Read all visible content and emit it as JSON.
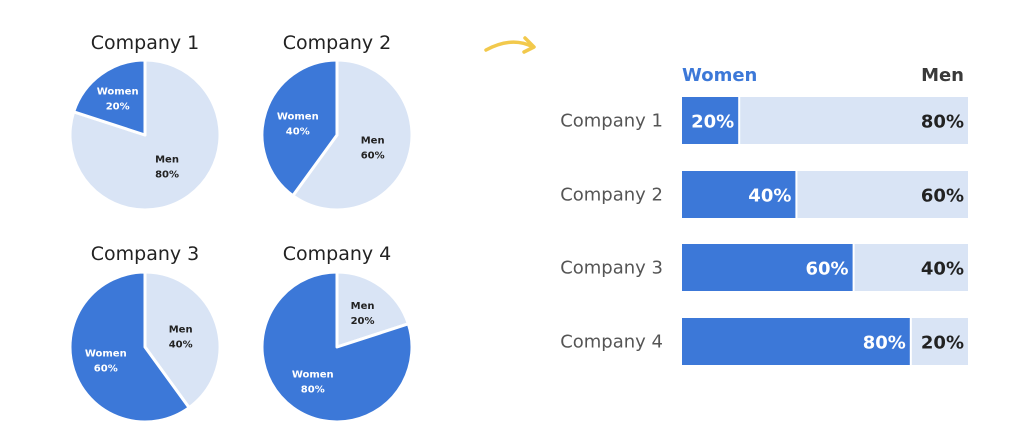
{
  "colors": {
    "women": "#3c78d8",
    "men": "#d9e4f5",
    "women_text_on_pie": "#ffffff",
    "men_text_on_pie": "#222222",
    "men_legend": "#3a3a3a",
    "arrow": "#f2c94c"
  },
  "icons": {
    "arrow": "curved-arrow-right-icon"
  },
  "chart_data": [
    {
      "type": "pie",
      "charts": [
        {
          "title": "Company 1",
          "slices": [
            {
              "label": "Women",
              "value": 20,
              "value_label": "20%"
            },
            {
              "label": "Men",
              "value": 80,
              "value_label": "80%"
            }
          ]
        },
        {
          "title": "Company 2",
          "slices": [
            {
              "label": "Women",
              "value": 40,
              "value_label": "40%"
            },
            {
              "label": "Men",
              "value": 60,
              "value_label": "60%"
            }
          ]
        },
        {
          "title": "Company 3",
          "slices": [
            {
              "label": "Women",
              "value": 60,
              "value_label": "60%"
            },
            {
              "label": "Men",
              "value": 40,
              "value_label": "40%"
            }
          ]
        },
        {
          "title": "Company 4",
          "slices": [
            {
              "label": "Women",
              "value": 80,
              "value_label": "80%"
            },
            {
              "label": "Men",
              "value": 20,
              "value_label": "20%"
            }
          ]
        }
      ]
    },
    {
      "type": "bar",
      "orientation": "horizontal",
      "stacked": "100%",
      "legend": {
        "left": "Women",
        "right": "Men"
      },
      "categories": [
        "Company 1",
        "Company 2",
        "Company 3",
        "Company 4"
      ],
      "series": [
        {
          "name": "Women",
          "values": [
            20,
            40,
            60,
            80
          ],
          "value_labels": [
            "20%",
            "40%",
            "60%",
            "80%"
          ]
        },
        {
          "name": "Men",
          "values": [
            80,
            60,
            40,
            20
          ],
          "value_labels": [
            "80%",
            "60%",
            "40%",
            "20%"
          ]
        }
      ]
    }
  ]
}
